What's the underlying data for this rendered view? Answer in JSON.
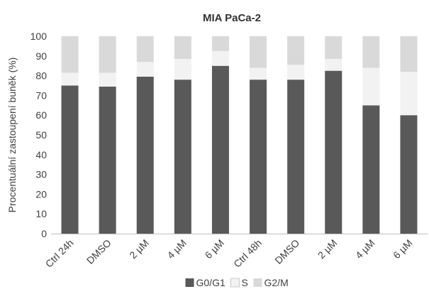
{
  "chart_data": {
    "type": "bar",
    "stacked": true,
    "title": "MIA PaCa-2",
    "xlabel": "",
    "ylabel": "Procentuální zastoupení buněk (%)",
    "ylim": [
      0,
      100
    ],
    "yticks": [
      0,
      10,
      20,
      30,
      40,
      50,
      60,
      70,
      80,
      90,
      100
    ],
    "grid": false,
    "legend_position": "bottom",
    "categories": [
      "Ctrl 24h",
      "DMSO",
      "2 µM",
      "4 µM",
      "6 µM",
      "Ctrl 48h",
      "DMSO",
      "2 µM",
      "4 µM",
      "6 µM"
    ],
    "series": [
      {
        "name": "G0/G1",
        "color": "#595959",
        "values": [
          75,
          74.5,
          79.5,
          78,
          85,
          78,
          78,
          82.5,
          65,
          60
        ]
      },
      {
        "name": "S",
        "color": "#f2f2f2",
        "values": [
          6.5,
          7,
          7.5,
          10.5,
          7.5,
          6,
          7.5,
          6,
          19,
          22
        ]
      },
      {
        "name": "G2/M",
        "color": "#d9d9d9",
        "values": [
          18.5,
          18.5,
          13,
          11.5,
          7.5,
          16,
          14.5,
          11.5,
          16,
          18
        ]
      }
    ]
  }
}
